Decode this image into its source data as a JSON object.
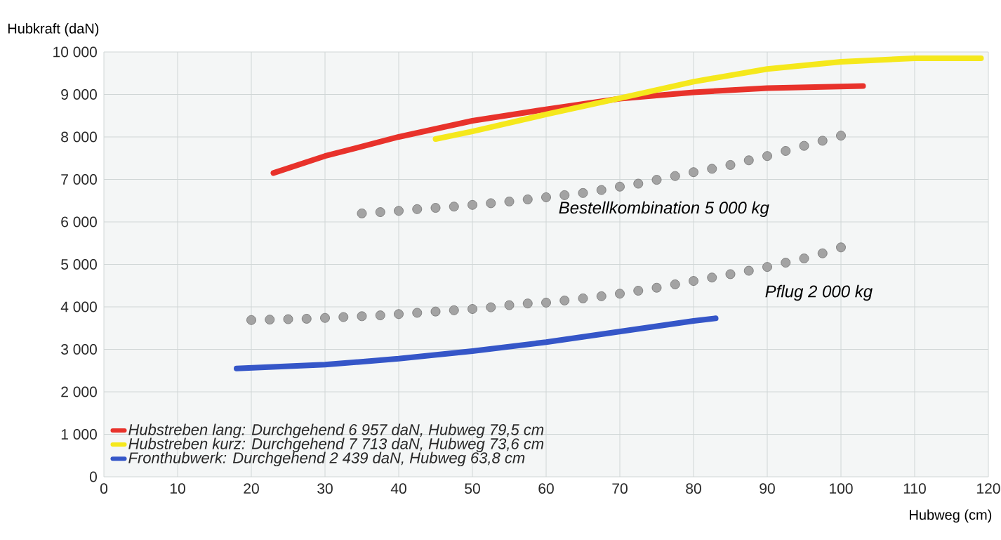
{
  "chart_data": {
    "type": "line",
    "xlabel": "Hubweg (cm)",
    "ylabel": "Hubkraft (daN)",
    "xlim": [
      0,
      120
    ],
    "ylim": [
      0,
      10000
    ],
    "xticks": [
      0,
      10,
      20,
      30,
      40,
      50,
      60,
      70,
      80,
      90,
      100,
      110,
      120
    ],
    "yticks": [
      0,
      {
        "value": 1000,
        "label": "1 000"
      },
      {
        "value": 2000,
        "label": "2 000"
      },
      {
        "value": 3000,
        "label": "3 000"
      },
      {
        "value": 4000,
        "label": "4 000"
      },
      {
        "value": 5000,
        "label": "5 000"
      },
      {
        "value": 6000,
        "label": "6 000"
      },
      {
        "value": 7000,
        "label": "7 000"
      },
      {
        "value": 8000,
        "label": "8 000"
      },
      {
        "value": 9000,
        "label": "9 000"
      },
      {
        "value": 10000,
        "label": "10 000"
      }
    ],
    "grid": true,
    "legend": "bottom left",
    "line_style": "solid",
    "series": [
      {
        "name": "Hubstreben lang: Durchgehend 6 957 daN, Hubweg 79,5 cm",
        "marker": "none",
        "color": "#e8322b",
        "x": [
          23,
          30,
          40,
          50,
          60,
          70,
          80,
          90,
          103
        ],
        "values": [
          7150,
          7550,
          8000,
          8380,
          8650,
          8900,
          9050,
          9150,
          9200
        ]
      },
      {
        "name": "Hubstreben kurz: Durchgehend 7 713 daN, Hubweg 73,6 cm",
        "marker": "none",
        "color": "#f5e81c",
        "x": [
          45,
          50,
          60,
          70,
          80,
          90,
          100,
          110,
          119
        ],
        "values": [
          7950,
          8130,
          8530,
          8910,
          9300,
          9600,
          9770,
          9850,
          9850
        ]
      },
      {
        "name": "Fronthubwerk: Durchgehend 2 439 daN, Hubweg 63,8 cm",
        "marker": "none",
        "color": "#3556c8",
        "x": [
          18,
          30,
          40,
          50,
          60,
          70,
          80,
          83
        ],
        "values": [
          2550,
          2640,
          2780,
          2960,
          3170,
          3420,
          3670,
          3730
        ]
      },
      {
        "name": "Bestellkombination 5 000 kg",
        "type": "scatter",
        "marker": "circle",
        "color": "#a3a3a3",
        "x": [
          35,
          37.5,
          40,
          42.5,
          45,
          47.5,
          50,
          52.5,
          55,
          57.5,
          60,
          62.5,
          65,
          67.5,
          70,
          72.5,
          75,
          77.5,
          80,
          82.5,
          85,
          87.5,
          90,
          92.5,
          95,
          97.5,
          100
        ],
        "values": [
          6200,
          6230,
          6260,
          6300,
          6330,
          6360,
          6400,
          6440,
          6480,
          6530,
          6580,
          6630,
          6680,
          6750,
          6830,
          6900,
          6990,
          7080,
          7170,
          7250,
          7340,
          7450,
          7550,
          7670,
          7790,
          7910,
          8030
        ]
      },
      {
        "name": "Pflug 2 000 kg",
        "type": "scatter",
        "marker": "circle",
        "color": "#a3a3a3",
        "x": [
          20,
          22.5,
          25,
          27.5,
          30,
          32.5,
          35,
          37.5,
          40,
          42.5,
          45,
          47.5,
          50,
          52.5,
          55,
          57.5,
          60,
          62.5,
          65,
          67.5,
          70,
          72.5,
          75,
          77.5,
          80,
          82.5,
          85,
          87.5,
          90,
          92.5,
          95,
          97.5,
          100
        ],
        "values": [
          3690,
          3700,
          3710,
          3720,
          3740,
          3760,
          3780,
          3800,
          3830,
          3860,
          3890,
          3920,
          3950,
          3990,
          4040,
          4080,
          4100,
          4150,
          4200,
          4250,
          4310,
          4380,
          4450,
          4530,
          4610,
          4690,
          4770,
          4850,
          4940,
          5040,
          5140,
          5260,
          5400
        ]
      }
    ]
  }
}
